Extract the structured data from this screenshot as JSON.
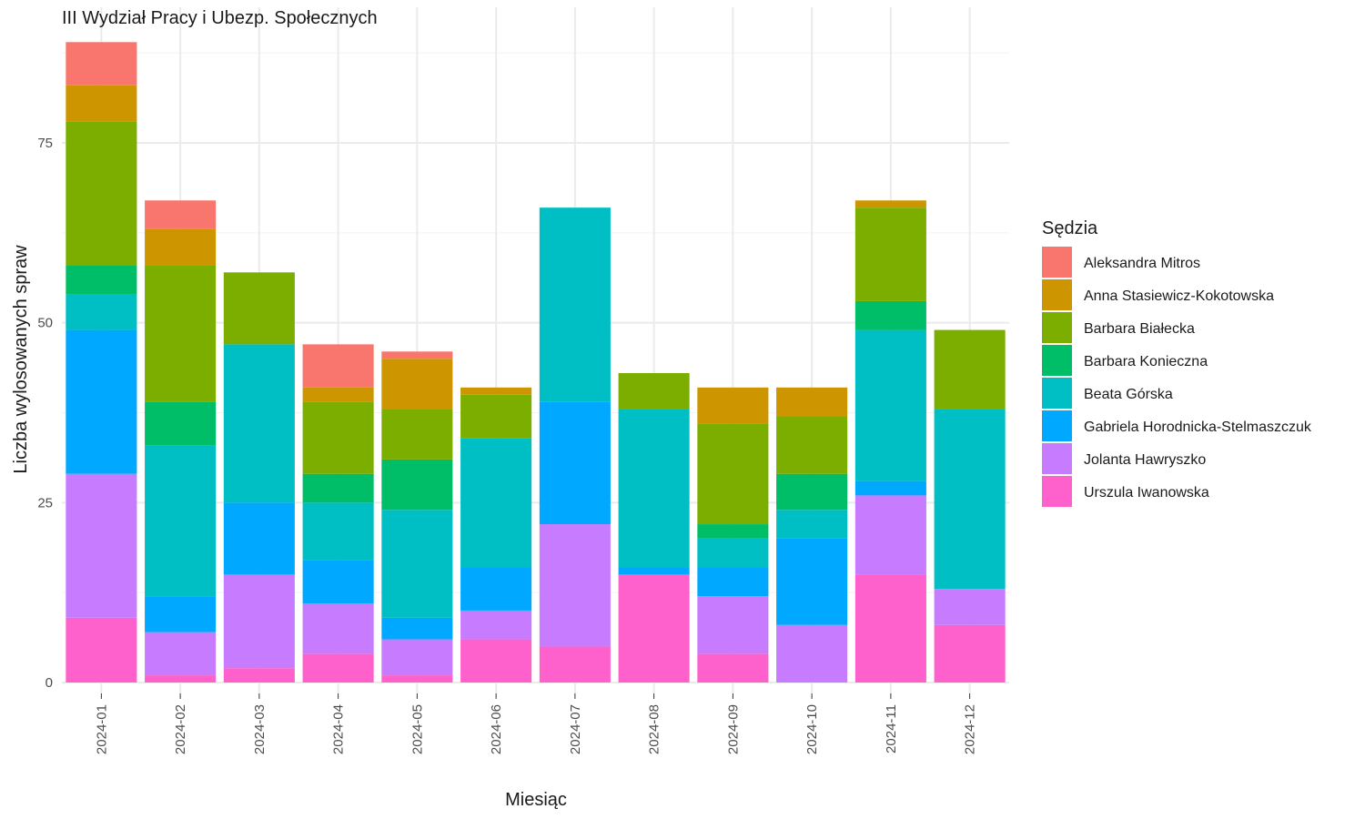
{
  "chart_data": {
    "type": "bar",
    "stacked": true,
    "title": "III Wydział Pracy i Ubezp. Społecznych",
    "xlabel": "Miesiąc",
    "ylabel": "Liczba wylosowanych spraw",
    "ylim": [
      0,
      90
    ],
    "yticks": [
      0,
      25,
      50,
      75
    ],
    "grid": true,
    "legend_title": "Sędzia",
    "legend_position": "right",
    "categories": [
      "2024-01",
      "2024-02",
      "2024-03",
      "2024-04",
      "2024-05",
      "2024-06",
      "2024-07",
      "2024-08",
      "2024-09",
      "2024-10",
      "2024-11",
      "2024-12"
    ],
    "series": [
      {
        "name": "Aleksandra Mitros",
        "color": "#F8766D",
        "values": [
          6,
          4,
          0,
          6,
          1,
          0,
          0,
          0,
          0,
          0,
          0,
          0
        ]
      },
      {
        "name": "Anna Stasiewicz-Kokotowska",
        "color": "#CD9600",
        "values": [
          5,
          5,
          0,
          2,
          7,
          1,
          0,
          0,
          5,
          4,
          1,
          0
        ]
      },
      {
        "name": "Barbara Białecka",
        "color": "#7CAE00",
        "values": [
          20,
          19,
          10,
          10,
          7,
          6,
          0,
          5,
          14,
          8,
          13,
          11
        ]
      },
      {
        "name": "Barbara Konieczna",
        "color": "#00BE67",
        "values": [
          4,
          6,
          0,
          4,
          7,
          0,
          0,
          0,
          2,
          5,
          4,
          0
        ]
      },
      {
        "name": "Beata Górska",
        "color": "#00BFC4",
        "values": [
          5,
          21,
          22,
          8,
          15,
          18,
          27,
          22,
          4,
          4,
          21,
          25
        ]
      },
      {
        "name": "Gabriela Horodnicka-Stelmaszczuk",
        "color": "#00A9FF",
        "values": [
          20,
          5,
          10,
          6,
          3,
          6,
          17,
          1,
          4,
          12,
          2,
          0
        ]
      },
      {
        "name": "Jolanta Hawryszko",
        "color": "#C77CFF",
        "values": [
          20,
          6,
          13,
          7,
          5,
          4,
          17,
          0,
          8,
          8,
          11,
          5
        ]
      },
      {
        "name": "Urszula Iwanowska",
        "color": "#FF61CC",
        "values": [
          9,
          1,
          2,
          4,
          1,
          6,
          5,
          15,
          4,
          0,
          15,
          8
        ]
      }
    ]
  }
}
